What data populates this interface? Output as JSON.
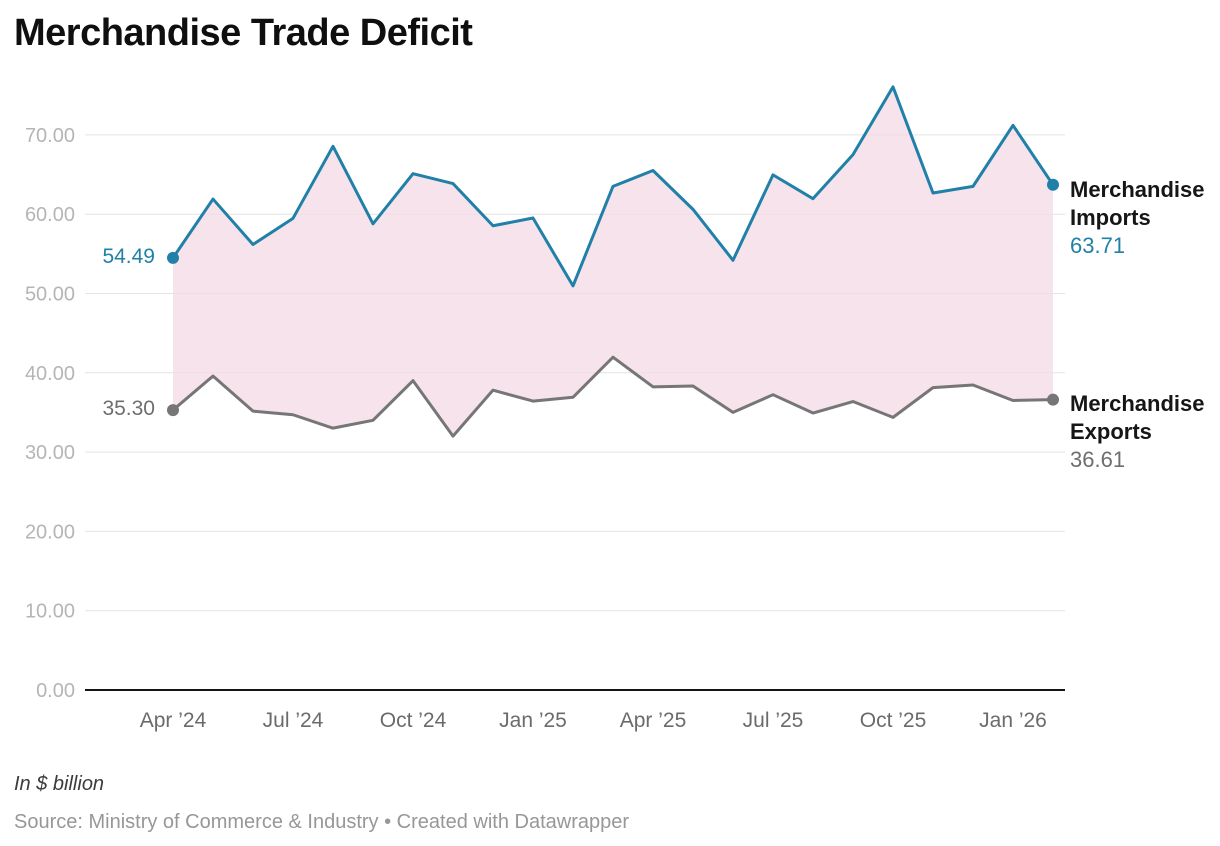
{
  "title": "Merchandise Trade Deficit",
  "annotations": {
    "imports_start": "54.49",
    "exports_start": "35.30",
    "imports_end": "63.71",
    "exports_end": "36.61"
  },
  "footer": {
    "note": "In $ billion",
    "source": "Source: Ministry of Commerce & Industry • Created with Datawrapper"
  },
  "chart_data": {
    "type": "line",
    "title": "Merchandise Trade Deficit",
    "unit": "$ billion",
    "grid": "horizontal",
    "legend_position": "right",
    "ylim": [
      0,
      78
    ],
    "y_tick_interval": 10,
    "band_fill": "#f4d9e4",
    "x": [
      "Apr 2024",
      "May 2024",
      "Jun 2024",
      "Jul 2024",
      "Aug 2024",
      "Sep 2024",
      "Oct 2024",
      "Nov 2024",
      "Dec 2024",
      "Jan 2025",
      "Feb 2025",
      "Mar 2025",
      "Apr 2025",
      "May 2025",
      "Jun 2025",
      "Jul 2025",
      "Aug 2025",
      "Sep 2025",
      "Oct 2025",
      "Nov 2025",
      "Dec 2025",
      "Jan 2026",
      "Feb 2026"
    ],
    "series": [
      {
        "name": "Merchandise Imports",
        "color": "#2080a8",
        "values": [
          54.49,
          61.91,
          56.18,
          59.48,
          68.56,
          58.79,
          65.11,
          63.86,
          58.54,
          59.52,
          50.96,
          63.51,
          65.51,
          60.61,
          54.19,
          64.96,
          61.96,
          67.51,
          76.06,
          62.67,
          63.51,
          71.21,
          63.71
        ]
      },
      {
        "name": "Merchandise Exports",
        "color": "#767676",
        "values": [
          35.3,
          39.59,
          35.16,
          34.71,
          33.02,
          34.01,
          39.01,
          32.01,
          37.81,
          36.43,
          36.91,
          41.97,
          38.23,
          38.33,
          35.01,
          37.24,
          34.93,
          36.38,
          34.38,
          38.13,
          38.46,
          36.51,
          36.61
        ]
      }
    ],
    "y_ticks": [
      "0.00",
      "10.00",
      "20.00",
      "30.00",
      "40.00",
      "50.00",
      "60.00",
      "70.00"
    ],
    "x_ticks": [
      {
        "index": 0,
        "label": "Apr ’24"
      },
      {
        "index": 3,
        "label": "Jul ’24"
      },
      {
        "index": 6,
        "label": "Oct ’24"
      },
      {
        "index": 9,
        "label": "Jan ’25"
      },
      {
        "index": 12,
        "label": "Apr ’25"
      },
      {
        "index": 15,
        "label": "Jul ’25"
      },
      {
        "index": 18,
        "label": "Oct ’25"
      },
      {
        "index": 21,
        "label": "Jan ’26"
      }
    ]
  }
}
